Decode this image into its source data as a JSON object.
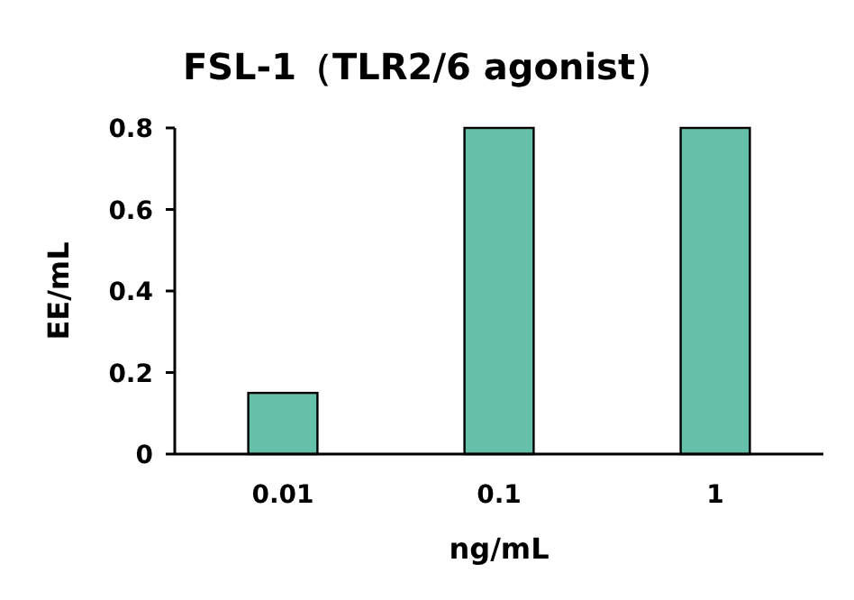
{
  "chart_data": {
    "type": "bar",
    "title": "FSL-1（TLR2/6 agonist）",
    "xlabel": "ng/mL",
    "ylabel": "EE/mL",
    "categories": [
      "0.01",
      "0.1",
      "1"
    ],
    "series": [
      {
        "color": "#66bfa8",
        "values": [
          0.15,
          0.8,
          0.8
        ]
      }
    ],
    "ylim": [
      0,
      0.8
    ],
    "yticks": [
      0,
      0.2,
      0.4,
      0.6,
      0.8
    ],
    "grid": false
  }
}
